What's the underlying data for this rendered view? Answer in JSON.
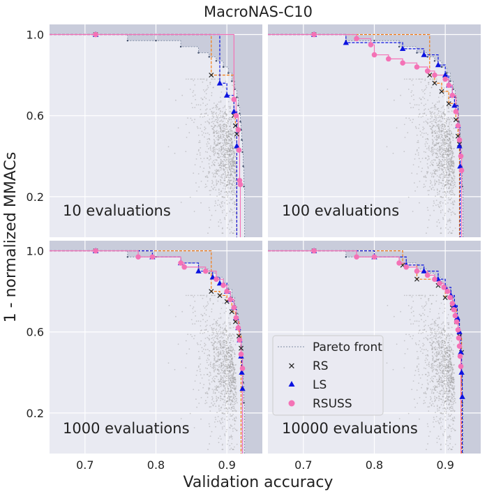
{
  "figure": {
    "title": "MacroNAS-C10",
    "xlabel": "Validation accuracy",
    "ylabel": "1 - normalized MMACs"
  },
  "colors": {
    "panel_bg": "#e9eaf2",
    "dominated_bg": "#c9ccdb",
    "grid": "#ffffff",
    "pareto": "#7d8ba3",
    "cloud": "#999999",
    "RS": "#f57b12",
    "LS": "#0b13e0",
    "RSUSS": "#f472b6"
  },
  "chart_data": [
    {
      "type": "scatter",
      "annotation": "10 evaluations",
      "xlim": [
        0.65,
        0.95
      ],
      "ylim": [
        0.0,
        1.05
      ],
      "xticks": [
        "0.7",
        "0.8",
        "0.9"
      ],
      "yticks": [
        "0.2",
        "0.6",
        "1.0"
      ],
      "grid": true,
      "series": [
        {
          "name": "RS",
          "points": [
            [
              0.715,
              1.0
            ],
            [
              0.878,
              0.8
            ],
            [
              0.91,
              0.6
            ],
            [
              0.912,
              0.55
            ],
            [
              0.914,
              0.51
            ]
          ]
        },
        {
          "name": "LS",
          "points": [
            [
              0.715,
              1.0
            ],
            [
              0.89,
              0.76
            ],
            [
              0.9,
              0.7
            ],
            [
              0.91,
              0.62
            ],
            [
              0.914,
              0.45
            ]
          ]
        },
        {
          "name": "RSUSS",
          "points": [
            [
              0.715,
              1.0
            ],
            [
              0.91,
              0.68
            ],
            [
              0.913,
              0.6
            ],
            [
              0.916,
              0.53
            ],
            [
              0.917,
              0.43
            ],
            [
              0.918,
              0.28
            ],
            [
              0.919,
              0.26
            ]
          ]
        }
      ]
    },
    {
      "type": "scatter",
      "annotation": "100 evaluations",
      "xlim": [
        0.65,
        0.95
      ],
      "ylim": [
        0.0,
        1.05
      ],
      "xticks": [
        "0.7",
        "0.8",
        "0.9"
      ],
      "yticks": [
        "0.2",
        "0.6",
        "1.0"
      ],
      "grid": true,
      "series": [
        {
          "name": "RS",
          "points": [
            [
              0.715,
              1.0
            ],
            [
              0.878,
              0.8
            ],
            [
              0.885,
              0.76
            ],
            [
              0.895,
              0.72
            ],
            [
              0.905,
              0.66
            ],
            [
              0.915,
              0.58
            ],
            [
              0.918,
              0.5
            ],
            [
              0.92,
              0.46
            ]
          ]
        },
        {
          "name": "LS",
          "points": [
            [
              0.715,
              1.0
            ],
            [
              0.76,
              0.96
            ],
            [
              0.84,
              0.93
            ],
            [
              0.87,
              0.9
            ],
            [
              0.89,
              0.85
            ],
            [
              0.9,
              0.8
            ],
            [
              0.905,
              0.75
            ],
            [
              0.91,
              0.7
            ],
            [
              0.913,
              0.65
            ],
            [
              0.918,
              0.55
            ],
            [
              0.92,
              0.45
            ],
            [
              0.921,
              0.35
            ]
          ]
        },
        {
          "name": "RSUSS",
          "points": [
            [
              0.715,
              1.0
            ],
            [
              0.775,
              0.98
            ],
            [
              0.795,
              0.95
            ],
            [
              0.8,
              0.9
            ],
            [
              0.82,
              0.88
            ],
            [
              0.84,
              0.86
            ],
            [
              0.86,
              0.84
            ],
            [
              0.875,
              0.82
            ],
            [
              0.885,
              0.8
            ],
            [
              0.9,
              0.78
            ],
            [
              0.905,
              0.75
            ],
            [
              0.91,
              0.7
            ],
            [
              0.915,
              0.62
            ],
            [
              0.918,
              0.55
            ],
            [
              0.92,
              0.48
            ],
            [
              0.922,
              0.4
            ],
            [
              0.923,
              0.33
            ]
          ]
        }
      ]
    },
    {
      "type": "scatter",
      "annotation": "1000 evaluations",
      "xlim": [
        0.65,
        0.95
      ],
      "ylim": [
        0.0,
        1.05
      ],
      "xticks": [
        "0.7",
        "0.8",
        "0.9"
      ],
      "yticks": [
        "0.2",
        "0.6",
        "1.0"
      ],
      "grid": true,
      "series": [
        {
          "name": "RS",
          "points": [
            [
              0.715,
              1.0
            ],
            [
              0.878,
              0.8
            ],
            [
              0.89,
              0.78
            ],
            [
              0.9,
              0.75
            ],
            [
              0.907,
              0.7
            ],
            [
              0.912,
              0.65
            ],
            [
              0.917,
              0.58
            ],
            [
              0.92,
              0.52
            ]
          ]
        },
        {
          "name": "LS",
          "points": [
            [
              0.715,
              1.0
            ],
            [
              0.795,
              0.97
            ],
            [
              0.835,
              0.94
            ],
            [
              0.86,
              0.9
            ],
            [
              0.88,
              0.87
            ],
            [
              0.89,
              0.84
            ],
            [
              0.9,
              0.8
            ],
            [
              0.905,
              0.76
            ],
            [
              0.91,
              0.72
            ],
            [
              0.913,
              0.67
            ],
            [
              0.916,
              0.62
            ],
            [
              0.918,
              0.56
            ],
            [
              0.92,
              0.48
            ],
            [
              0.921,
              0.4
            ],
            [
              0.922,
              0.32
            ]
          ]
        },
        {
          "name": "RSUSS",
          "points": [
            [
              0.715,
              1.0
            ],
            [
              0.775,
              0.97
            ],
            [
              0.795,
              0.97
            ],
            [
              0.835,
              0.94
            ],
            [
              0.84,
              0.92
            ],
            [
              0.87,
              0.9
            ],
            [
              0.885,
              0.86
            ],
            [
              0.895,
              0.83
            ],
            [
              0.9,
              0.8
            ],
            [
              0.905,
              0.76
            ],
            [
              0.91,
              0.72
            ],
            [
              0.913,
              0.67
            ],
            [
              0.916,
              0.62
            ],
            [
              0.918,
              0.56
            ],
            [
              0.92,
              0.49
            ],
            [
              0.922,
              0.42
            ]
          ]
        }
      ]
    },
    {
      "type": "scatter",
      "annotation": "10000 evaluations",
      "xlim": [
        0.65,
        0.95
      ],
      "ylim": [
        0.0,
        1.05
      ],
      "xticks": [
        "0.7",
        "0.8",
        "0.9"
      ],
      "yticks": [
        "0.2",
        "0.6",
        "1.0"
      ],
      "grid": true,
      "legend": {
        "placement": "lower-left",
        "entries": [
          "Pareto front",
          "RS",
          "LS",
          "RSUSS"
        ]
      },
      "series": [
        {
          "name": "RS",
          "points": [
            [
              0.715,
              1.0
            ],
            [
              0.84,
              0.93
            ],
            [
              0.86,
              0.86
            ],
            [
              0.89,
              0.83
            ],
            [
              0.9,
              0.77
            ],
            [
              0.91,
              0.72
            ],
            [
              0.916,
              0.65
            ],
            [
              0.92,
              0.58
            ],
            [
              0.923,
              0.5
            ]
          ]
        },
        {
          "name": "LS",
          "points": [
            [
              0.715,
              1.0
            ],
            [
              0.8,
              0.97
            ],
            [
              0.845,
              0.93
            ],
            [
              0.87,
              0.9
            ],
            [
              0.89,
              0.86
            ],
            [
              0.9,
              0.82
            ],
            [
              0.908,
              0.78
            ],
            [
              0.913,
              0.73
            ],
            [
              0.917,
              0.67
            ],
            [
              0.92,
              0.6
            ],
            [
              0.922,
              0.5
            ],
            [
              0.923,
              0.4
            ],
            [
              0.924,
              0.28
            ]
          ]
        },
        {
          "name": "RSUSS",
          "points": [
            [
              0.715,
              1.0
            ],
            [
              0.775,
              0.97
            ],
            [
              0.8,
              0.97
            ],
            [
              0.835,
              0.94
            ],
            [
              0.845,
              0.92
            ],
            [
              0.86,
              0.9
            ],
            [
              0.875,
              0.88
            ],
            [
              0.885,
              0.86
            ],
            [
              0.892,
              0.84
            ],
            [
              0.898,
              0.82
            ],
            [
              0.903,
              0.8
            ],
            [
              0.907,
              0.77
            ],
            [
              0.91,
              0.74
            ],
            [
              0.912,
              0.71
            ],
            [
              0.914,
              0.68
            ],
            [
              0.916,
              0.65
            ],
            [
              0.918,
              0.61
            ],
            [
              0.919,
              0.57
            ],
            [
              0.92,
              0.53
            ],
            [
              0.921,
              0.48
            ],
            [
              0.922,
              0.43
            ]
          ]
        }
      ]
    }
  ]
}
